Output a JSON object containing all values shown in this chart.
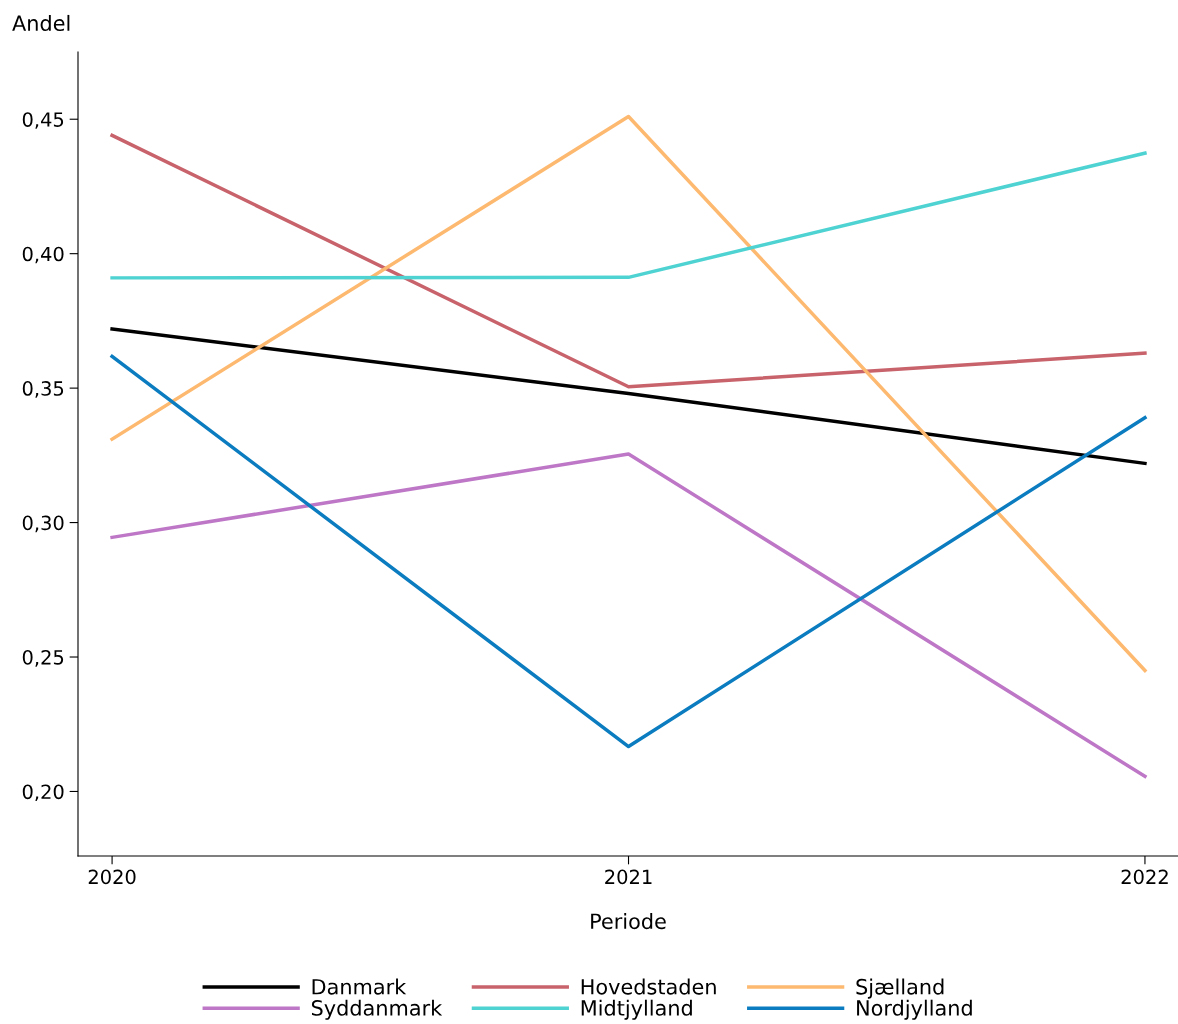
{
  "chart_data": {
    "type": "line",
    "xlabel": "Periode",
    "ylabel": "Andel",
    "x": [
      2020,
      2021,
      2022
    ],
    "xlim": [
      2019.934,
      2022.064
    ],
    "xticks": [
      2020,
      2021,
      2022
    ],
    "ylim": [
      0.176,
      0.475
    ],
    "yticks": [
      {
        "value": 0.2,
        "label": "0,20"
      },
      {
        "value": 0.25,
        "label": "0,25"
      },
      {
        "value": 0.3,
        "label": "0,30"
      },
      {
        "value": 0.35,
        "label": "0,35"
      },
      {
        "value": 0.4,
        "label": "0,40"
      },
      {
        "value": 0.45,
        "label": "0,45"
      }
    ],
    "grid": false,
    "legend": "bottom",
    "marker": "none",
    "line_style": "solid",
    "series": [
      {
        "name": "Danmark",
        "color": "#000000",
        "values": [
          0.372,
          0.348,
          0.322
        ]
      },
      {
        "name": "Hovedstaden",
        "color": "#c8626b",
        "values": [
          0.444,
          0.3505,
          0.363
        ]
      },
      {
        "name": "Sjælland",
        "color": "#fdb96f",
        "values": [
          0.331,
          0.451,
          0.245
        ]
      },
      {
        "name": "Syddanmark",
        "color": "#bd77c6",
        "values": [
          0.2945,
          0.3255,
          0.2056
        ]
      },
      {
        "name": "Midtjylland",
        "color": "#4fd2d2",
        "values": [
          0.391,
          0.3912,
          0.4374
        ]
      },
      {
        "name": "Nordjylland",
        "color": "#0a7cbf",
        "values": [
          0.3618,
          0.2167,
          0.339
        ]
      }
    ]
  }
}
